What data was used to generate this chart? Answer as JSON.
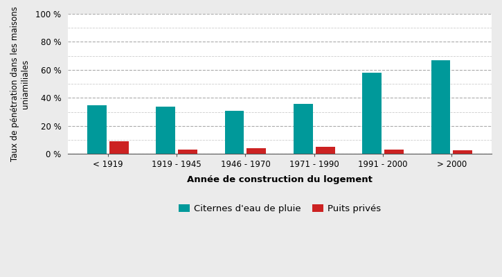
{
  "categories": [
    "< 1919",
    "1919 - 1945",
    "1946 - 1970",
    "1971 - 1990",
    "1991 - 2000",
    "> 2000"
  ],
  "citernes": [
    35,
    34,
    31,
    36,
    58,
    67
  ],
  "puits": [
    9,
    3,
    4,
    5,
    3,
    2.5
  ],
  "color_citernes": "#00999A",
  "color_puits": "#cc2222",
  "xlabel": "Année de construction du logement",
  "ylabel": "Taux de pénétration dans les maisons\nuniamiliales",
  "ylabel_correct": "Taux de pénétration dans les maisons\nuniamiliales",
  "ylim": [
    0,
    100
  ],
  "yticks_major": [
    0,
    20,
    40,
    60,
    80,
    100
  ],
  "yticks_minor": [
    10,
    30,
    50,
    70,
    90
  ],
  "legend_citernes": "Citernes d'eau de pluie",
  "legend_puits": "Puits privés",
  "bar_width": 0.28,
  "background_color": "#ebebeb",
  "plot_background": "#ffffff",
  "grid_color_major": "#aaaaaa",
  "grid_color_minor": "#cccccc",
  "spine_color": "#555555"
}
